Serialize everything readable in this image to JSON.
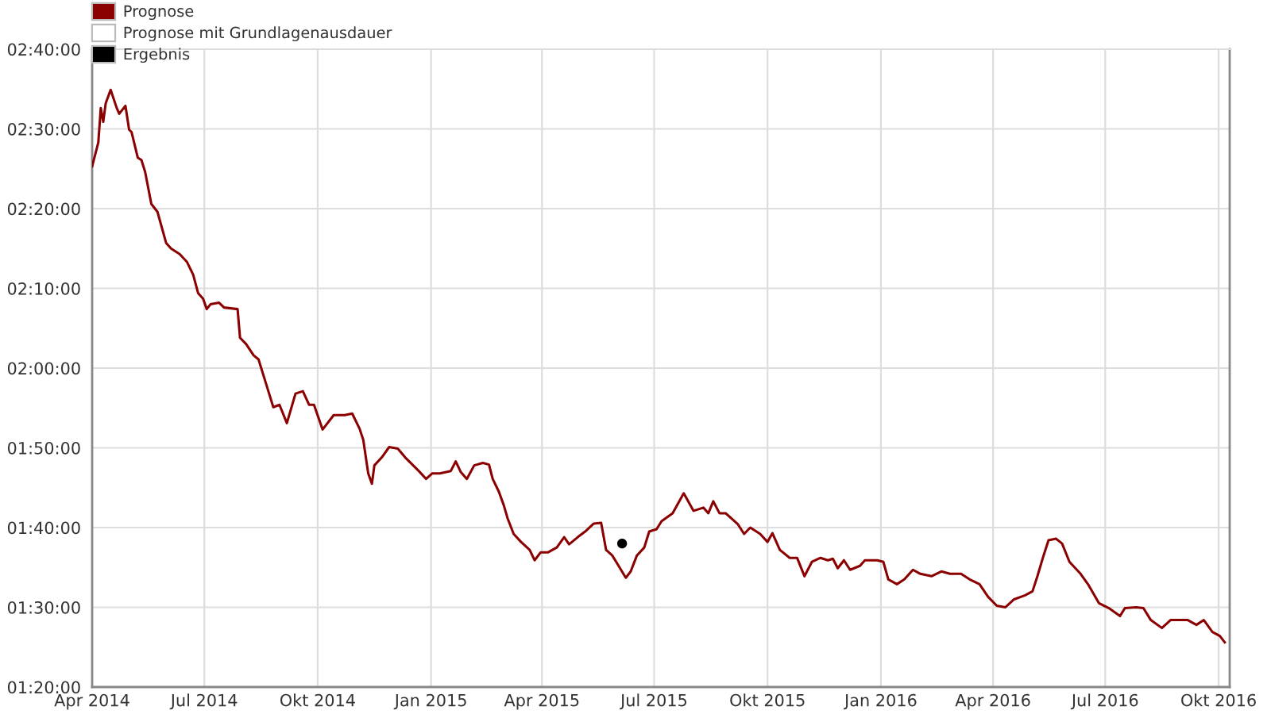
{
  "chart_data": {
    "type": "line",
    "xlim": [
      "2014-04-01",
      "2016-10-10"
    ],
    "xticks": [
      {
        "value": "2014-04-01",
        "label": "Apr 2014"
      },
      {
        "value": "2014-07-01",
        "label": "Jul 2014"
      },
      {
        "value": "2014-10-01",
        "label": "Okt 2014"
      },
      {
        "value": "2015-01-01",
        "label": "Jan 2015"
      },
      {
        "value": "2015-04-01",
        "label": "Apr 2015"
      },
      {
        "value": "2015-07-01",
        "label": "Jul 2015"
      },
      {
        "value": "2015-10-01",
        "label": "Okt 2015"
      },
      {
        "value": "2016-01-01",
        "label": "Jan 2016"
      },
      {
        "value": "2016-04-01",
        "label": "Apr 2016"
      },
      {
        "value": "2016-07-01",
        "label": "Jul 2016"
      },
      {
        "value": "2016-10-01",
        "label": "Okt 2016"
      }
    ],
    "ylim": [
      80,
      160
    ],
    "yticks": [
      {
        "value": 80,
        "label": "01:20:00"
      },
      {
        "value": 90,
        "label": "01:30:00"
      },
      {
        "value": 100,
        "label": "01:40:00"
      },
      {
        "value": 110,
        "label": "01:50:00"
      },
      {
        "value": 120,
        "label": "02:00:00"
      },
      {
        "value": 130,
        "label": "02:10:00"
      },
      {
        "value": 140,
        "label": "02:20:00"
      },
      {
        "value": 150,
        "label": "02:30:00"
      },
      {
        "value": 160,
        "label": "02:40:00"
      }
    ],
    "grid": true,
    "legend": "top left",
    "series": [
      {
        "name": "Prognose",
        "color": "#8b0000",
        "x": [
          "2014-04-01",
          "2014-04-06",
          "2014-04-08",
          "2014-04-10",
          "2014-04-12",
          "2014-04-16",
          "2014-04-21",
          "2014-04-23",
          "2014-04-28",
          "2014-05-01",
          "2014-05-03",
          "2014-05-08",
          "2014-05-11",
          "2014-05-14",
          "2014-05-19",
          "2014-05-24",
          "2014-05-31",
          "2014-06-04",
          "2014-06-11",
          "2014-06-17",
          "2014-06-22",
          "2014-06-26",
          "2014-06-30",
          "2014-07-03",
          "2014-07-06",
          "2014-07-13",
          "2014-07-17",
          "2014-07-28",
          "2014-07-30",
          "2014-08-04",
          "2014-08-10",
          "2014-08-14",
          "2014-08-20",
          "2014-08-26",
          "2014-08-31",
          "2014-09-06",
          "2014-09-13",
          "2014-09-19",
          "2014-09-24",
          "2014-09-28",
          "2014-10-05",
          "2014-10-14",
          "2014-10-23",
          "2014-10-29",
          "2014-11-04",
          "2014-11-07",
          "2014-11-11",
          "2014-11-14",
          "2014-11-16",
          "2014-11-22",
          "2014-11-28",
          "2014-12-05",
          "2014-12-11",
          "2014-12-22",
          "2014-12-28",
          "2015-01-02",
          "2015-01-08",
          "2015-01-17",
          "2015-01-21",
          "2015-01-25",
          "2015-01-30",
          "2015-02-05",
          "2015-02-12",
          "2015-02-17",
          "2015-02-20",
          "2015-02-25",
          "2015-03-01",
          "2015-03-04",
          "2015-03-09",
          "2015-03-15",
          "2015-03-22",
          "2015-03-26",
          "2015-03-31",
          "2015-04-06",
          "2015-04-13",
          "2015-04-19",
          "2015-04-23",
          "2015-04-30",
          "2015-05-06",
          "2015-05-13",
          "2015-05-19",
          "2015-05-23",
          "2015-05-28",
          "2015-06-01",
          "2015-06-08",
          "2015-06-12",
          "2015-06-17",
          "2015-06-23",
          "2015-06-27",
          "2015-07-03",
          "2015-07-07",
          "2015-07-16",
          "2015-07-25",
          "2015-08-02",
          "2015-08-10",
          "2015-08-14",
          "2015-08-18",
          "2015-08-23",
          "2015-08-28",
          "2015-09-07",
          "2015-09-12",
          "2015-09-17",
          "2015-09-25",
          "2015-10-01",
          "2015-10-05",
          "2015-10-11",
          "2015-10-19",
          "2015-10-25",
          "2015-10-31",
          "2015-11-06",
          "2015-11-13",
          "2015-11-19",
          "2015-11-23",
          "2015-11-27",
          "2015-12-02",
          "2015-12-07",
          "2015-12-15",
          "2015-12-19",
          "2015-12-29",
          "2016-01-03",
          "2016-01-07",
          "2016-01-14",
          "2016-01-20",
          "2016-01-27",
          "2016-02-02",
          "2016-02-11",
          "2016-02-19",
          "2016-02-26",
          "2016-03-06",
          "2016-03-13",
          "2016-03-21",
          "2016-03-28",
          "2016-04-04",
          "2016-04-11",
          "2016-04-18",
          "2016-04-27",
          "2016-05-03",
          "2016-05-07",
          "2016-05-12",
          "2016-05-16",
          "2016-05-22",
          "2016-05-27",
          "2016-06-02",
          "2016-06-11",
          "2016-06-17",
          "2016-06-26",
          "2016-07-04",
          "2016-07-13",
          "2016-07-17",
          "2016-07-26",
          "2016-08-01",
          "2016-08-07",
          "2016-08-16",
          "2016-08-23",
          "2016-08-31",
          "2016-09-06",
          "2016-09-13",
          "2016-09-19",
          "2016-09-26",
          "2016-10-02",
          "2016-10-06"
        ],
        "values": [
          145.3,
          148.3,
          152.6,
          150.9,
          153.2,
          154.9,
          152.6,
          151.9,
          152.9,
          149.9,
          149.6,
          146.4,
          146.1,
          144.6,
          140.6,
          139.6,
          135.7,
          135.0,
          134.3,
          133.3,
          131.7,
          129.4,
          128.7,
          127.4,
          128.0,
          128.2,
          127.6,
          127.4,
          123.8,
          123.0,
          121.6,
          121.1,
          118.1,
          115.1,
          115.4,
          113.1,
          116.8,
          117.1,
          115.4,
          115.4,
          112.3,
          114.1,
          114.1,
          114.3,
          112.4,
          111.0,
          106.8,
          105.5,
          107.8,
          108.8,
          110.1,
          109.9,
          108.8,
          107.1,
          106.1,
          106.8,
          106.8,
          107.1,
          108.3,
          107.0,
          106.1,
          107.8,
          108.1,
          107.9,
          106.1,
          104.5,
          102.8,
          101.2,
          99.2,
          98.2,
          97.2,
          95.9,
          96.9,
          96.9,
          97.5,
          98.8,
          97.9,
          98.8,
          99.5,
          100.5,
          100.6,
          97.2,
          96.5,
          95.5,
          93.7,
          94.5,
          96.5,
          97.5,
          99.5,
          99.8,
          100.8,
          101.8,
          104.3,
          102.1,
          102.5,
          101.8,
          103.3,
          101.8,
          101.8,
          100.4,
          99.2,
          100.0,
          99.2,
          98.2,
          99.3,
          97.2,
          96.2,
          96.2,
          93.9,
          95.7,
          96.2,
          95.9,
          96.1,
          94.9,
          95.9,
          94.7,
          95.2,
          95.9,
          95.9,
          95.7,
          93.5,
          92.9,
          93.5,
          94.7,
          94.2,
          93.9,
          94.5,
          94.2,
          94.2,
          93.5,
          92.9,
          91.3,
          90.2,
          90.0,
          91.0,
          91.5,
          92.0,
          93.9,
          96.5,
          98.4,
          98.6,
          98.0,
          95.7,
          94.2,
          92.9,
          90.5,
          89.9,
          88.9,
          89.9,
          90.0,
          89.9,
          88.4,
          87.4,
          88.4,
          88.4,
          88.4,
          87.8,
          88.4,
          86.9,
          86.4,
          85.6
        ]
      },
      {
        "name": "Prognose mit Grundlagenausdauer",
        "color": "#ffffff"
      },
      {
        "name": "Ergebnis",
        "type": "scatter",
        "color": "#000000",
        "marker": "circle",
        "x": [
          "2015-06-05"
        ],
        "values": [
          98.0
        ]
      }
    ]
  }
}
